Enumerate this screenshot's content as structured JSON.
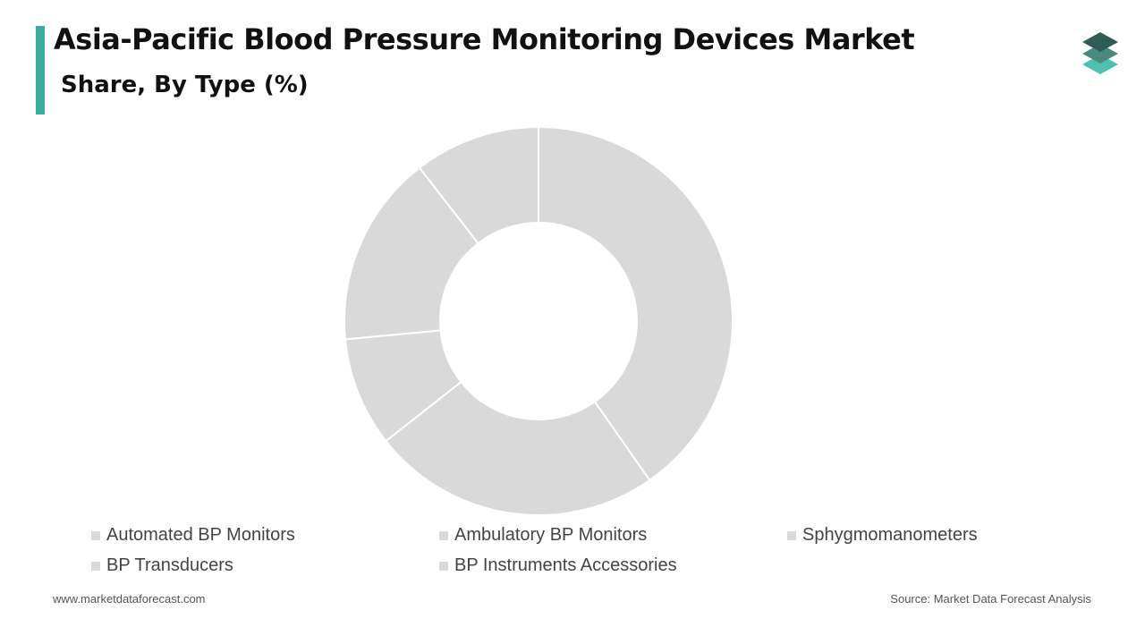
{
  "header": {
    "title": "Asia-Pacific Blood Pressure Monitoring Devices Market",
    "subtitle": "Share, By Type (%)"
  },
  "footer": {
    "website": "www.marketdataforecast.com",
    "source": "Source: Market Data Forecast Analysis"
  },
  "colors": {
    "accent": "#3aa99f",
    "slice_fill": "#d9d9d9",
    "slice_border": "#ffffff",
    "logo_dark": "#2f5d55",
    "logo_mid": "#4a8a7e",
    "logo_light": "#4fbfb2"
  },
  "logo": {
    "icon": "stacked-layers-icon"
  },
  "chart_data": {
    "type": "pie",
    "variant": "donut",
    "categories": [
      "Automated BP Monitors",
      "Ambulatory BP Monitors",
      "Sphygmomanometers",
      "BP Transducers",
      "BP Instruments Accessories"
    ],
    "values": [
      40.3,
      24.1,
      9.1,
      16.0,
      10.5
    ],
    "legend_position": "bottom"
  }
}
